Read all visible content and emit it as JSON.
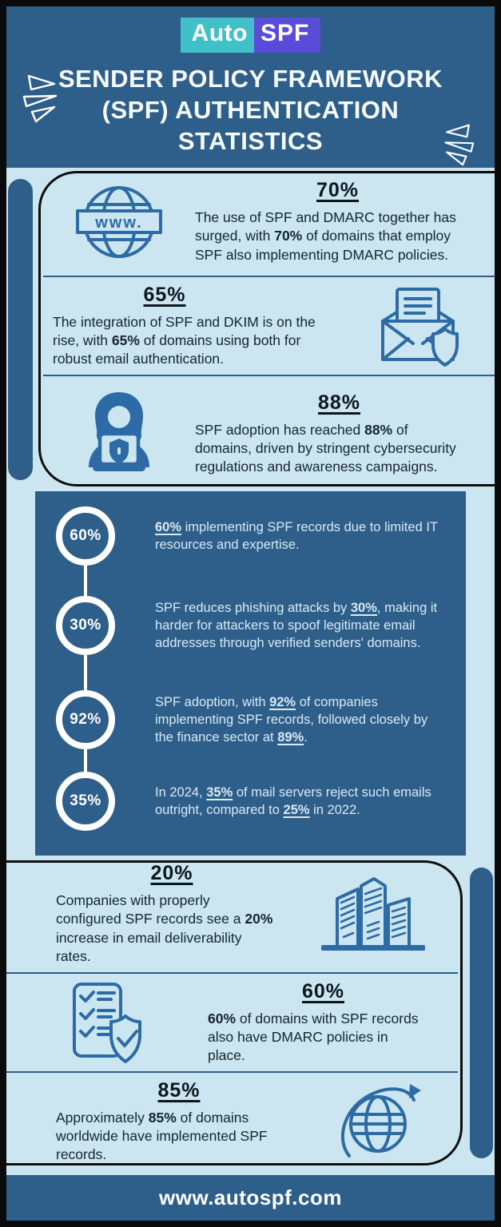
{
  "logo": {
    "part1": "Auto",
    "part2": "SPF"
  },
  "header": {
    "title_line1": "SENDER POLICY FRAMEWORK",
    "title_line2": "(SPF) AUTHENTICATION",
    "title_line3": "STATISTICS"
  },
  "colors": {
    "dark_blue": "#2e5e8a",
    "light_blue": "#cbe6f0",
    "icon_blue": "#2d6ba6",
    "logo_teal": "#41c0ca",
    "logo_purple": "#5a4bd8",
    "outline_black": "#0d0d0d"
  },
  "icons": {
    "www_label": "www."
  },
  "stats_top": [
    {
      "percent": "70%",
      "icon": "www-globe-icon",
      "segments": [
        {
          "t": "The use of SPF and DMARC together has surged, with "
        },
        {
          "t": "70%",
          "b": true
        },
        {
          "t": " of domains that employ SPF also implementing DMARC policies."
        }
      ]
    },
    {
      "percent": "65%",
      "icon": "envelope-shield-icon",
      "segments": [
        {
          "t": "The integration of SPF and DKIM is on the rise, with "
        },
        {
          "t": "65%",
          "b": true
        },
        {
          "t": " of domains using both for robust email authentication."
        }
      ]
    },
    {
      "percent": "88%",
      "icon": "person-laptop-icon",
      "segments": [
        {
          "t": "SPF adoption has reached "
        },
        {
          "t": "88%",
          "b": true
        },
        {
          "t": " of domains, driven by stringent cybersecurity regulations and awareness campaigns."
        }
      ]
    }
  ],
  "timeline": [
    {
      "percent": "60%",
      "segments": [
        {
          "t": "60%",
          "b": true,
          "u": true
        },
        {
          "t": " implementing SPF records due to limited IT resources and expertise."
        }
      ]
    },
    {
      "percent": "30%",
      "segments": [
        {
          "t": "SPF reduces phishing attacks by "
        },
        {
          "t": "30%",
          "b": true,
          "u": true
        },
        {
          "t": ", making it harder for attackers to spoof legitimate email addresses through verified senders' domains."
        }
      ]
    },
    {
      "percent": "92%",
      "segments": [
        {
          "t": "SPF adoption, with "
        },
        {
          "t": "92%",
          "b": true,
          "u": true
        },
        {
          "t": " of companies implementing SPF records, followed closely by the finance sector at "
        },
        {
          "t": "89%",
          "b": true,
          "u": true
        },
        {
          "t": "."
        }
      ]
    },
    {
      "percent": "35%",
      "segments": [
        {
          "t": "In 2024, "
        },
        {
          "t": "35%",
          "b": true,
          "u": true
        },
        {
          "t": " of mail servers reject such emails outright, compared to "
        },
        {
          "t": "25%",
          "b": true,
          "u": true
        },
        {
          "t": " in 2022."
        }
      ]
    }
  ],
  "stats_bottom": [
    {
      "percent": "20%",
      "icon": "buildings-icon",
      "segments": [
        {
          "t": "Companies with properly configured SPF records see a "
        },
        {
          "t": "20%",
          "b": true
        },
        {
          "t": " increase in email deliverability rates."
        }
      ]
    },
    {
      "percent": "60%",
      "icon": "checklist-shield-icon",
      "segments": [
        {
          "t": "60%",
          "b": true
        },
        {
          "t": " of domains with SPF records also have DMARC policies in place."
        }
      ]
    },
    {
      "percent": "85%",
      "icon": "globe-arrow-icon",
      "segments": [
        {
          "t": "Approximately "
        },
        {
          "t": "85%",
          "b": true
        },
        {
          "t": " of domains worldwide have implemented SPF records."
        }
      ]
    }
  ],
  "footer": {
    "url": "www.autospf.com"
  }
}
